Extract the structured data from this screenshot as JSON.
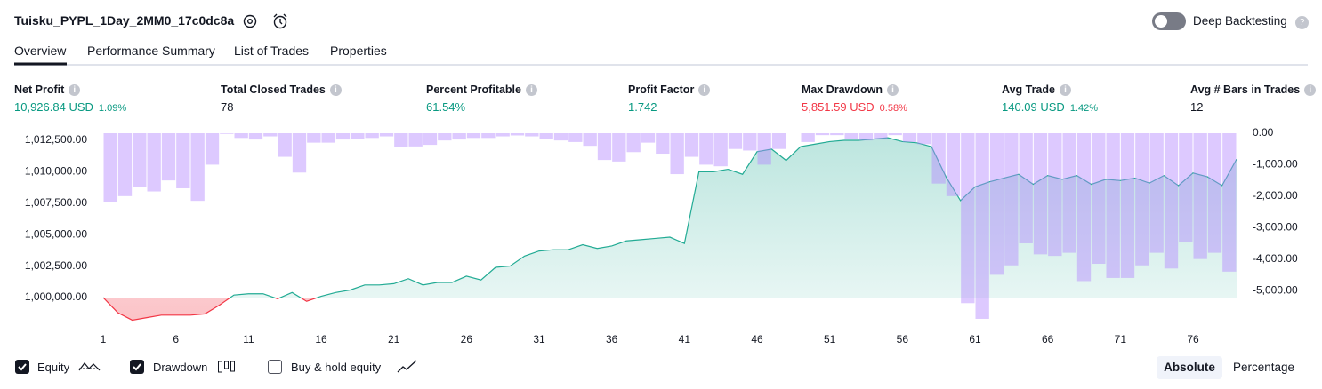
{
  "header": {
    "title": "Tuisku_PYPL_1Day_2MM0_17c0dc8a",
    "toggle_label": "Deep Backtesting"
  },
  "tabs": [
    "Overview",
    "Performance Summary",
    "List of Trades",
    "Properties"
  ],
  "metrics": [
    {
      "label": "Net Profit",
      "value": "10,926.84 USD",
      "percent": "1.09%"
    },
    {
      "label": "Total Closed Trades",
      "value": "78"
    },
    {
      "label": "Percent Profitable",
      "value": "61.54%"
    },
    {
      "label": "Profit Factor",
      "value": "1.742"
    },
    {
      "label": "Max Drawdown",
      "value": "5,851.59 USD",
      "percent": "0.58%"
    },
    {
      "label": "Avg Trade",
      "value": "140.09 USD",
      "percent": "1.42%"
    },
    {
      "label": "Avg # Bars in Trades",
      "value": "12"
    }
  ],
  "chart_data": {
    "type": "combo",
    "x": [
      1,
      2,
      3,
      4,
      5,
      6,
      7,
      8,
      9,
      10,
      11,
      12,
      13,
      14,
      15,
      16,
      17,
      18,
      19,
      20,
      21,
      22,
      23,
      24,
      25,
      26,
      27,
      28,
      29,
      30,
      31,
      32,
      33,
      34,
      35,
      36,
      37,
      38,
      39,
      40,
      41,
      42,
      43,
      44,
      45,
      46,
      47,
      48,
      49,
      50,
      51,
      52,
      53,
      54,
      55,
      56,
      57,
      58,
      59,
      60,
      61,
      62,
      63,
      64,
      65,
      66,
      67,
      68,
      69,
      70,
      71,
      72,
      73,
      74,
      75,
      76,
      77,
      78,
      79
    ],
    "xlim": [
      1,
      79
    ],
    "xticks": [
      1,
      6,
      11,
      16,
      21,
      26,
      31,
      36,
      41,
      46,
      51,
      56,
      61,
      66,
      71,
      76
    ],
    "ylim": [
      997880,
      1013065
    ],
    "yticks": [
      {
        "value": 1000000,
        "label": "1,000,000.00"
      },
      {
        "value": 1002500,
        "label": "1,002,500.00"
      },
      {
        "value": 1005000,
        "label": "1,005,000.00"
      },
      {
        "value": 1007500,
        "label": "1,007,500.00"
      },
      {
        "value": 1010000,
        "label": "1,010,000.00"
      },
      {
        "value": 1012500,
        "label": "1,012,500.00"
      }
    ],
    "y2lim": [
      -6070,
      0
    ],
    "y2ticks": [
      {
        "value": 0,
        "label": "0.00"
      },
      {
        "value": -1000,
        "label": "-1,000.00"
      },
      {
        "value": -2000,
        "label": "-2,000.00"
      },
      {
        "value": -3000,
        "label": "-3,000.00"
      },
      {
        "value": -4000,
        "label": "-4,000.00"
      },
      {
        "value": -5000,
        "label": "-5,000.00"
      }
    ],
    "series": [
      {
        "name": "Equity",
        "type": "area",
        "color": "#22ab94",
        "negative_color": "#f23645",
        "values": [
          1000000,
          998800,
          998200,
          998400,
          998600,
          998600,
          998600,
          998700,
          999400,
          1000200,
          1000300,
          1000300,
          999900,
          1000400,
          999700,
          1000100,
          1000400,
          1000600,
          1001000,
          1001000,
          1001100,
          1001500,
          1001000,
          1001200,
          1001200,
          1001700,
          1001400,
          1002400,
          1002500,
          1003300,
          1003700,
          1003800,
          1003800,
          1004200,
          1003900,
          1004100,
          1004500,
          1004600,
          1004700,
          1004800,
          1004300,
          1010000,
          1010000,
          1010200,
          1009800,
          1011600,
          1011800,
          1010900,
          1012000,
          1012200,
          1012400,
          1012500,
          1012500,
          1012600,
          1012700,
          1012400,
          1012300,
          1012000,
          1009600,
          1007700,
          1008800,
          1009200,
          1009500,
          1009800,
          1009000,
          1009700,
          1009400,
          1009700,
          1009000,
          1009400,
          1009300,
          1009500,
          1009100,
          1009700,
          1008900,
          1009900,
          1009600,
          1008900,
          1011000
        ]
      },
      {
        "name": "Drawdown",
        "type": "bar",
        "axis": "y2",
        "color": "#b388ff",
        "values": [
          null,
          -2200,
          -2000,
          -1700,
          -1850,
          -1500,
          -1750,
          -2150,
          -1000,
          -20,
          -150,
          -200,
          -100,
          -750,
          -1250,
          -300,
          -300,
          -200,
          -170,
          -150,
          -100,
          -450,
          -420,
          -370,
          -230,
          -200,
          -150,
          -150,
          -100,
          -70,
          -100,
          -170,
          -230,
          -280,
          -400,
          -850,
          -900,
          -600,
          -300,
          -650,
          -1300,
          -750,
          -1000,
          -1050,
          -500,
          -550,
          -1000,
          -500,
          0,
          -280,
          -60,
          -60,
          -200,
          -230,
          -200,
          -60,
          -280,
          -350,
          -1600,
          -2000,
          -5400,
          -5900,
          -4500,
          -4200,
          -3500,
          -3850,
          -3900,
          -3800,
          -4700,
          -4150,
          -4600,
          -4600,
          -4200,
          -3800,
          -4300,
          -3450,
          -4000,
          -3800,
          -4400
        ]
      }
    ]
  },
  "footer": {
    "buy_hold_label": "Buy & hold equity",
    "buttons": [
      "Absolute",
      "Percentage"
    ]
  }
}
